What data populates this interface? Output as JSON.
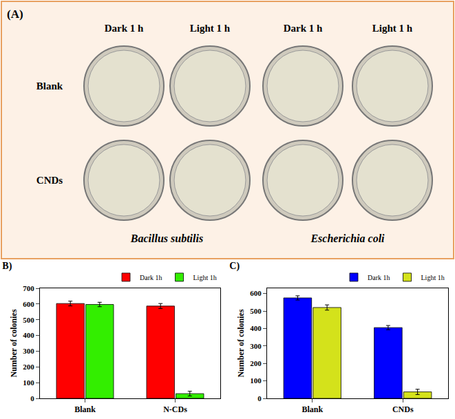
{
  "photo_panel": {
    "label": "(A)",
    "columns": [
      "Dark 1 h",
      "Light 1 h",
      "Dark 1 h",
      "Light 1 h"
    ],
    "rows": [
      "Blank",
      "CNDs"
    ],
    "species": [
      "Bacillus subtilis",
      "Escherichia coli"
    ]
  },
  "chart_data": [
    {
      "type": "bar",
      "title": "B)",
      "y_label": "Number of colonies",
      "categories": [
        "Blank",
        "N-CDs"
      ],
      "series": [
        {
          "name": "Dark 1h",
          "color": "#ff0000",
          "values": [
            603,
            587
          ],
          "errors": [
            15,
            16
          ]
        },
        {
          "name": "Light 1h",
          "color": "#33ee00",
          "values": [
            597,
            30
          ],
          "errors": [
            14,
            15
          ]
        }
      ],
      "ylim": [
        0,
        700
      ],
      "yticks": [
        0,
        100,
        200,
        300,
        400,
        500,
        600,
        700
      ],
      "legend": "top right"
    },
    {
      "type": "bar",
      "title": "C)",
      "y_label": "Number of colonies",
      "categories": [
        "Blank",
        "CNDs"
      ],
      "series": [
        {
          "name": "Dark 1h",
          "color": "#0000ff",
          "values": [
            575,
            405
          ],
          "errors": [
            12,
            12
          ]
        },
        {
          "name": "Light 1h",
          "color": "#d4e21b",
          "values": [
            520,
            37
          ],
          "errors": [
            15,
            15
          ]
        }
      ],
      "ylim": [
        0,
        630
      ],
      "yticks": [
        0,
        100,
        200,
        300,
        400,
        500,
        600
      ],
      "legend": "top right"
    }
  ]
}
